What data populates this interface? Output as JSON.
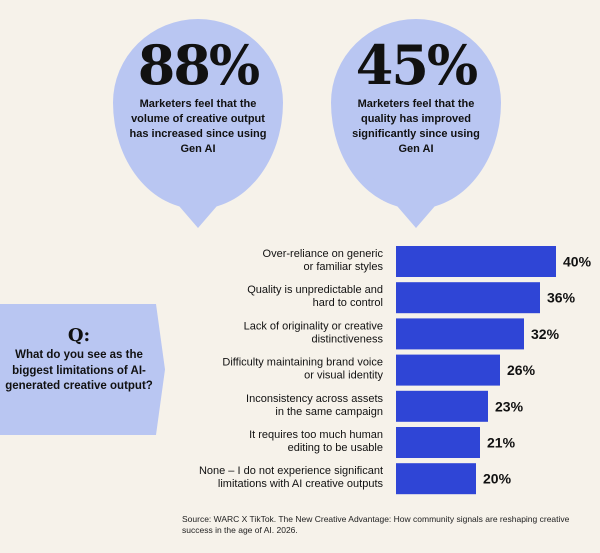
{
  "colors": {
    "background": "#f6f2ea",
    "bubble": "#b9c6f2",
    "bar": "#2f45d6",
    "text": "#111111"
  },
  "stats": [
    {
      "value": "88%",
      "caption": "Marketers feel that the volume of creative output has increased since using Gen AI"
    },
    {
      "value": "45%",
      "caption": "Marketers feel that the quality has improved significantly since using Gen AI"
    }
  ],
  "question": {
    "label": "Q:",
    "text": "What do you see as the biggest limitations of AI-generated creative output?"
  },
  "chart_data": {
    "type": "bar",
    "orientation": "horizontal",
    "categories": [
      [
        "Over-reliance on generic",
        "or familiar styles"
      ],
      [
        "Quality is unpredictable and",
        "hard to control"
      ],
      [
        "Lack of originality or creative",
        "distinctiveness"
      ],
      [
        "Difficulty maintaining brand voice",
        "or visual identity"
      ],
      [
        "Inconsistency across assets",
        "in the same campaign"
      ],
      [
        "It requires too much human",
        "editing to be usable"
      ],
      [
        "None – I do not experience significant",
        "limitations with AI creative outputs"
      ]
    ],
    "values": [
      40,
      36,
      32,
      26,
      23,
      21,
      20
    ],
    "value_labels": [
      "40%",
      "36%",
      "32%",
      "26%",
      "23%",
      "21%",
      "20%"
    ],
    "title": "",
    "xlabel": "",
    "ylabel": "",
    "xlim": [
      0,
      40
    ],
    "grid": false,
    "legend": "none"
  },
  "source": "Source: WARC X TikTok. The New Creative Advantage: How community signals are reshaping creative success in the age of AI. 2026."
}
